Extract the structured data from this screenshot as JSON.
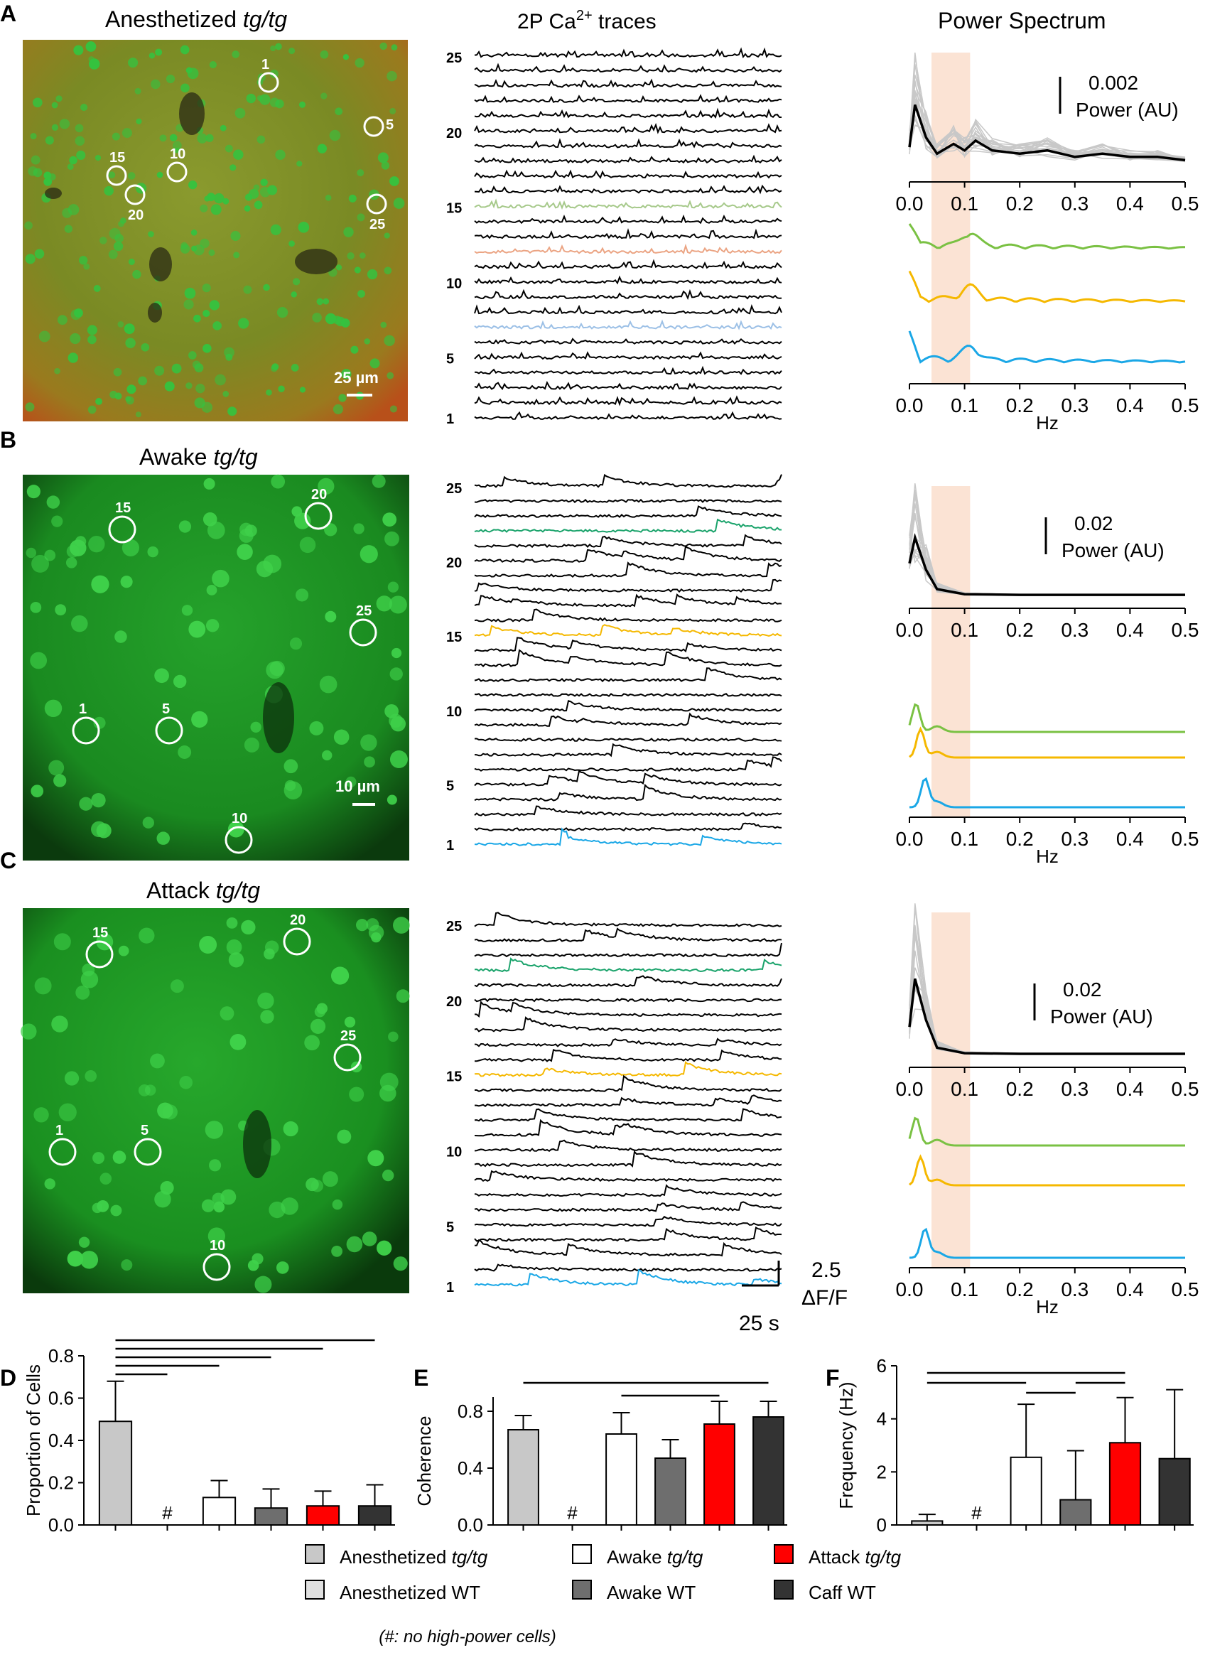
{
  "panels": {
    "A": {
      "letter": "A",
      "image_title": "Anesthetized ",
      "image_title_italic": "tg/tg",
      "scale_bar": "25 µm",
      "cells": [
        {
          "label": "1",
          "x": 378,
          "y": 116
        },
        {
          "label": "5",
          "x": 526,
          "y": 178
        },
        {
          "label": "10",
          "x": 249,
          "y": 242
        },
        {
          "label": "15",
          "x": 164,
          "y": 247
        },
        {
          "label": "20",
          "x": 190,
          "y": 274
        },
        {
          "label": "25",
          "x": 530,
          "y": 287
        }
      ],
      "colors": [
        "#5b9a3c",
        "#b59a1e",
        "#2c7f3a",
        "#9a8a33",
        "#6aa84f"
      ]
    },
    "B": {
      "letter": "B",
      "image_title": "Awake ",
      "image_title_italic": "tg/tg",
      "scale_bar": "10 µm",
      "cells": [
        {
          "label": "15",
          "x": 172,
          "y": 745
        },
        {
          "label": "20",
          "x": 448,
          "y": 726
        },
        {
          "label": "25",
          "x": 511,
          "y": 890
        },
        {
          "label": "1",
          "x": 121,
          "y": 1028
        },
        {
          "label": "5",
          "x": 238,
          "y": 1028
        },
        {
          "label": "10",
          "x": 336,
          "y": 1182
        }
      ]
    },
    "C": {
      "letter": "C",
      "image_title": "Attack ",
      "image_title_italic": "tg/tg",
      "cells": [
        {
          "label": "15",
          "x": 140,
          "y": 1343
        },
        {
          "label": "20",
          "x": 418,
          "y": 1325
        },
        {
          "label": "25",
          "x": 489,
          "y": 1488
        },
        {
          "label": "1",
          "x": 88,
          "y": 1621
        },
        {
          "label": "5",
          "x": 208,
          "y": 1621
        },
        {
          "label": "10",
          "x": 305,
          "y": 1783
        }
      ]
    }
  },
  "traces_header": {
    "prefix": "2P Ca",
    "superscript": "2+",
    "suffix": " traces"
  },
  "spectrum_header": "Power Spectrum",
  "trace_labels": [
    "25",
    "20",
    "15",
    "10",
    "5",
    "1"
  ],
  "scale": {
    "amp": "2.5",
    "amp_unit": "ΔF/F",
    "time": "25 s"
  },
  "power_scale": {
    "A": "0.002",
    "B": "0.02",
    "C": "0.02",
    "label": "Power (AU)"
  },
  "hz_label": "Hz",
  "colors": {
    "green": "#7ac143",
    "yellow": "#f5b800",
    "blue": "#1aa7e6",
    "teal": "#1aa36b",
    "band": "#fbe3d4",
    "lightgreen": "#a6c98a",
    "salmon": "#eba483",
    "lightblue": "#9cc0e6"
  },
  "chart_data": [
    {
      "type": "line",
      "id": "spectrum-A",
      "xlabel": "",
      "ylabel": "",
      "xlim": [
        0,
        0.5
      ],
      "x_ticks": [
        "0.0",
        "0.1",
        "0.2",
        "0.3",
        "0.4",
        "0.5"
      ],
      "highlight_band": [
        0.04,
        0.11
      ],
      "series": [
        {
          "values": [
            [
              0,
              0.0005
            ],
            [
              0.01,
              0.0018
            ],
            [
              0.03,
              0.0008
            ],
            [
              0.05,
              0.0003
            ],
            [
              0.08,
              0.0006
            ],
            [
              0.1,
              0.0004
            ],
            [
              0.12,
              0.0007
            ],
            [
              0.15,
              0.0004
            ],
            [
              0.2,
              0.0003
            ],
            [
              0.25,
              0.0004
            ],
            [
              0.3,
              0.0002
            ],
            [
              0.35,
              0.0003
            ],
            [
              0.4,
              0.0002
            ],
            [
              0.45,
              0.0002
            ],
            [
              0.5,
              0.0001
            ]
          ]
        }
      ]
    },
    {
      "type": "line",
      "id": "spectrum-B",
      "xlim": [
        0,
        0.5
      ],
      "x_ticks": [
        "0.0",
        "0.1",
        "0.2",
        "0.3",
        "0.4",
        "0.5"
      ],
      "highlight_band": [
        0.04,
        0.11
      ],
      "series": [
        {
          "values": [
            [
              0,
              0.005
            ],
            [
              0.01,
              0.009
            ],
            [
              0.03,
              0.004
            ],
            [
              0.05,
              0.001
            ],
            [
              0.1,
              0.0002
            ],
            [
              0.2,
              0.0001
            ],
            [
              0.5,
              0.0001
            ]
          ]
        }
      ]
    },
    {
      "type": "line",
      "id": "spectrum-C",
      "xlim": [
        0,
        0.5
      ],
      "x_ticks": [
        "0.0",
        "0.1",
        "0.2",
        "0.3",
        "0.4",
        "0.5"
      ],
      "highlight_band": [
        0.04,
        0.11
      ],
      "series": [
        {
          "values": [
            [
              0,
              0.004
            ],
            [
              0.01,
              0.011
            ],
            [
              0.03,
              0.005
            ],
            [
              0.05,
              0.001
            ],
            [
              0.1,
              0.0002
            ],
            [
              0.2,
              0.0001
            ],
            [
              0.5,
              0.0001
            ]
          ]
        }
      ]
    },
    {
      "type": "bar",
      "id": "D",
      "letter": "D",
      "ylabel": "Proportion of Cells",
      "ylim": [
        0,
        0.8
      ],
      "y_ticks": [
        "0.0",
        "0.2",
        "0.4",
        "0.6",
        "0.8"
      ],
      "values": [
        0.49,
        null,
        0.13,
        0.08,
        0.09,
        0.09
      ],
      "errors": [
        0.19,
        null,
        0.08,
        0.09,
        0.07,
        0.1
      ],
      "no_data_mark": "#",
      "sig_levels": [
        0.68,
        0.72,
        0.76,
        0.8
      ]
    },
    {
      "type": "bar",
      "id": "E",
      "letter": "E",
      "ylabel": "Coherence",
      "ylim": [
        0,
        0.9
      ],
      "y_ticks": [
        "0.0",
        "0.4",
        "0.8"
      ],
      "values": [
        0.67,
        null,
        0.64,
        0.47,
        0.71,
        0.76
      ],
      "errors": [
        0.1,
        null,
        0.15,
        0.13,
        0.16,
        0.11
      ],
      "no_data_mark": "#"
    },
    {
      "type": "bar",
      "id": "F",
      "letter": "F",
      "ylabel": "Frequency (Hz)",
      "ylim": [
        0,
        6
      ],
      "y_ticks": [
        "0",
        "2",
        "4",
        "6"
      ],
      "values": [
        0.15,
        null,
        2.55,
        0.95,
        3.1,
        2.5
      ],
      "errors": [
        0.25,
        null,
        2.0,
        1.85,
        1.7,
        2.6
      ],
      "no_data_mark": "#"
    }
  ],
  "legend": [
    {
      "text": "Anesthetized ",
      "italic": "tg/tg",
      "fill": "#c8c8c8"
    },
    {
      "text": "Awake ",
      "italic": "tg/tg",
      "fill": "#ffffff"
    },
    {
      "text": "Attack ",
      "italic": "tg/tg",
      "fill": "#ff0000"
    },
    {
      "text": "Anesthetized WT",
      "italic": "",
      "fill": "#e0e0e0"
    },
    {
      "text": "Awake WT",
      "italic": "",
      "fill": "#6e6e6e"
    },
    {
      "text": "Caff WT",
      "italic": "",
      "fill": "#333333"
    }
  ],
  "legend_note": "(#: no high-power cells)"
}
